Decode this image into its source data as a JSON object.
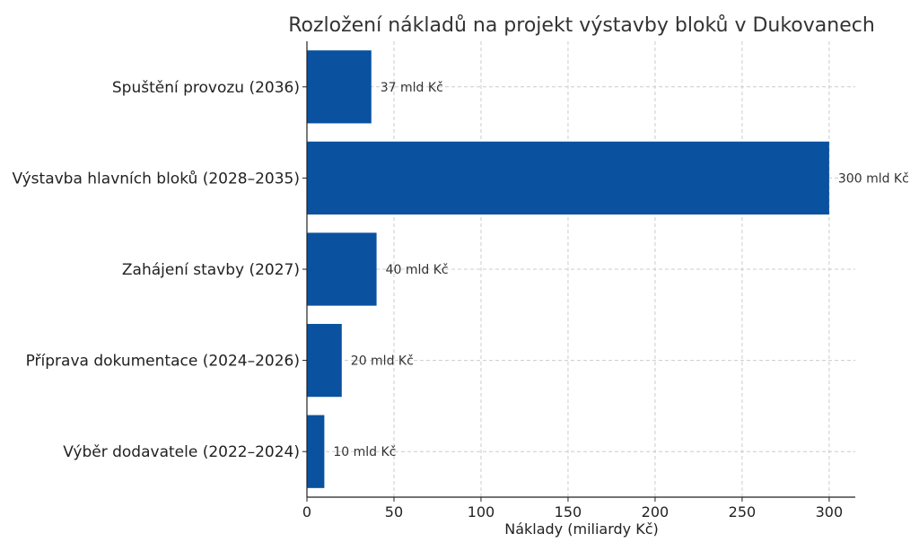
{
  "chart_data": {
    "type": "bar",
    "orientation": "horizontal",
    "title": "Rozložení nákladů na projekt výstavby bloků v Dukovanech",
    "xlabel": "Náklady (miliardy Kč)",
    "ylabel": "",
    "categories": [
      "Spuštění provozu (2036)",
      "Výstavba hlavních bloků (2028–2035)",
      "Zahájení stavby (2027)",
      "Příprava dokumentace (2024–2026)",
      "Výběr dodavatele (2022–2024)"
    ],
    "values": [
      37,
      300,
      40,
      20,
      10
    ],
    "data_labels": [
      "37 mld Kč",
      "300 mld Kč",
      "40 mld Kč",
      "20 mld Kč",
      "10 mld Kč"
    ],
    "xlim": [
      0,
      315
    ],
    "xticks": [
      0,
      50,
      100,
      150,
      200,
      250,
      300
    ],
    "grid": true,
    "bar_color": "#0a51a0"
  }
}
